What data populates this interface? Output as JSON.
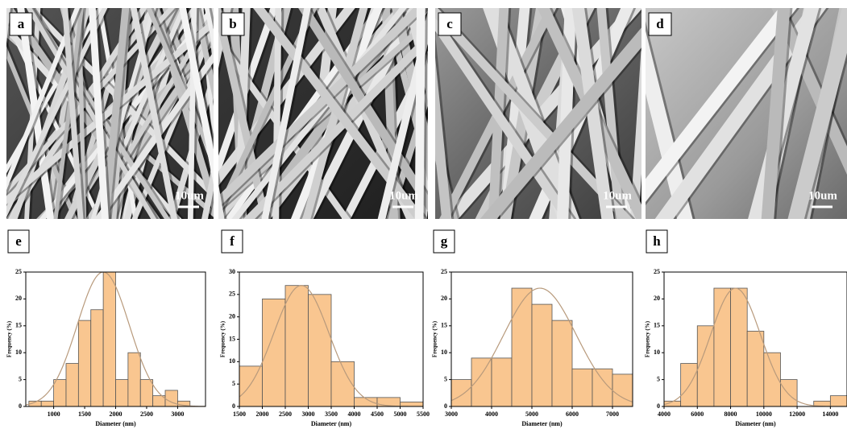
{
  "images": [
    {
      "label": "a",
      "scale": "10um"
    },
    {
      "label": "b",
      "scale": "10um"
    },
    {
      "label": "c",
      "scale": "10um"
    },
    {
      "label": "d",
      "scale": "10um"
    }
  ],
  "chart_data": [
    {
      "type": "histogram",
      "panel": "e",
      "x_label": "Diameter (nm)",
      "y_label": "Frequency (%)",
      "bins": [
        600,
        800,
        1000,
        1200,
        1400,
        1600,
        1800,
        2000,
        2200,
        2400,
        2600,
        2800,
        3000,
        3200
      ],
      "values": [
        1,
        1,
        5,
        8,
        16,
        18,
        25,
        5,
        10,
        5,
        2,
        3,
        1
      ],
      "xlim": [
        550,
        3450
      ],
      "xticks": [
        1000,
        1500,
        2000,
        2500,
        3000
      ],
      "ylim": [
        0,
        25
      ],
      "yticks": [
        0,
        5,
        10,
        15,
        20,
        25
      ],
      "color": "#f9c690",
      "curve": {
        "mean": 1800,
        "sd": 420,
        "peak": 25,
        "color": "#b89a7c"
      }
    },
    {
      "type": "histogram",
      "panel": "f",
      "x_label": "Diameter (nm)",
      "y_label": "Frequency (%)",
      "bins": [
        1500,
        2000,
        2500,
        3000,
        3500,
        4000,
        4500,
        5000,
        5500
      ],
      "values": [
        9,
        24,
        27,
        25,
        10,
        2,
        2,
        1
      ],
      "xlim": [
        1500,
        5500
      ],
      "xticks": [
        1500,
        2000,
        2500,
        3000,
        3500,
        4000,
        4500,
        5000,
        5500
      ],
      "ylim": [
        0,
        30
      ],
      "yticks": [
        0,
        5,
        10,
        15,
        20,
        25,
        30
      ],
      "color": "#f9c690",
      "curve": {
        "mean": 2850,
        "sd": 600,
        "peak": 27,
        "color": "#b89a7c"
      }
    },
    {
      "type": "histogram",
      "panel": "g",
      "x_label": "Diameter (nm)",
      "y_label": "Frequency (%)",
      "bins": [
        3000,
        3500,
        4000,
        4500,
        5000,
        5500,
        6000,
        6500,
        7000,
        7500
      ],
      "values": [
        5,
        9,
        9,
        22,
        19,
        16,
        7,
        7,
        6
      ],
      "xlim": [
        3000,
        7500
      ],
      "xticks": [
        3000,
        4000,
        5000,
        6000,
        7000
      ],
      "ylim": [
        0,
        25
      ],
      "yticks": [
        0,
        5,
        10,
        15,
        20,
        25
      ],
      "color": "#f9c690",
      "curve": {
        "mean": 5200,
        "sd": 900,
        "peak": 22,
        "color": "#b89a7c"
      }
    },
    {
      "type": "histogram",
      "panel": "h",
      "x_label": "Diameter (nm)",
      "y_label": "Frequency (%)",
      "bins": [
        4000,
        5000,
        6000,
        7000,
        8000,
        9000,
        10000,
        11000,
        12000,
        13000,
        14000,
        15000
      ],
      "values": [
        1,
        8,
        15,
        22,
        22,
        14,
        10,
        5,
        0,
        1,
        2
      ],
      "xlim": [
        4000,
        15000
      ],
      "xticks": [
        4000,
        6000,
        8000,
        10000,
        12000,
        14000
      ],
      "ylim": [
        0,
        25
      ],
      "yticks": [
        0,
        5,
        10,
        15,
        20,
        25
      ],
      "color": "#f9c690",
      "curve": {
        "mean": 8300,
        "sd": 1500,
        "peak": 22,
        "color": "#b89a7c"
      }
    }
  ]
}
